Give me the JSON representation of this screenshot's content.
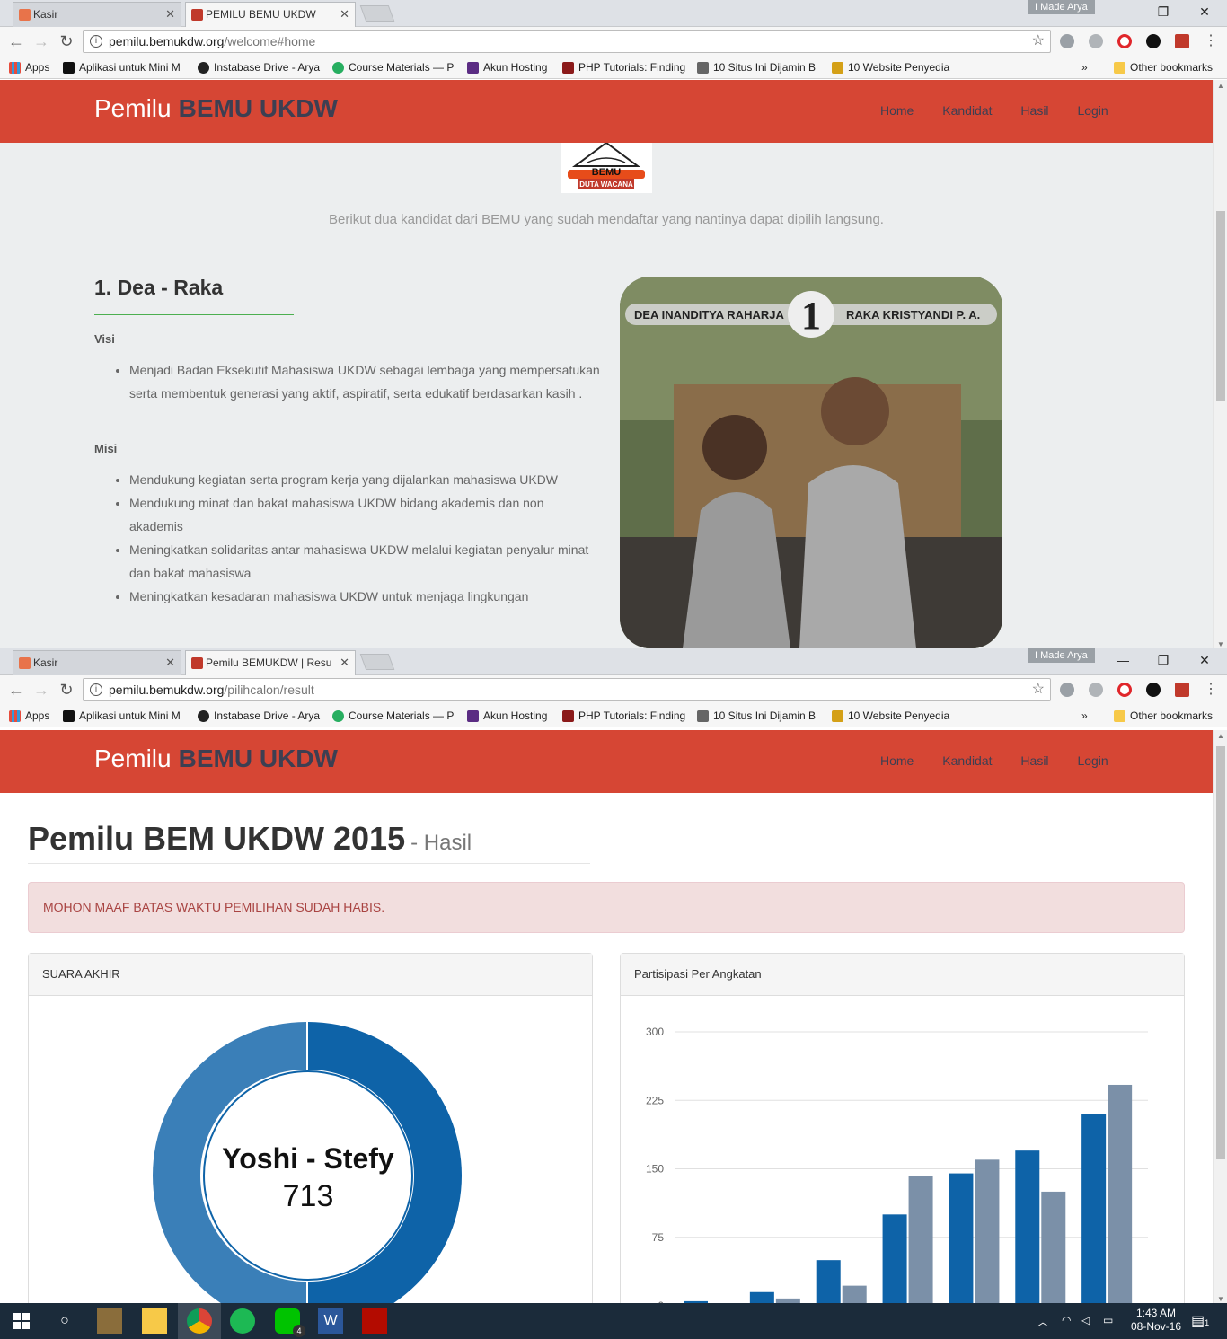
{
  "window_top": {
    "tabs": [
      {
        "title": "Kasir",
        "active": false
      },
      {
        "title": "PEMILU BEMU UKDW",
        "active": true
      }
    ],
    "user": "I Made Arya",
    "url_host": "pemilu.bemukdw.org",
    "url_path": "/welcome#home"
  },
  "window_bottom": {
    "tabs": [
      {
        "title": "Kasir",
        "active": false
      },
      {
        "title": "Pemilu BEMUKDW | Resu",
        "active": true
      }
    ],
    "user": "I Made Arya",
    "url_host": "pemilu.bemukdw.org",
    "url_path": "/pilihcalon/result"
  },
  "bookmarks": {
    "apps": "Apps",
    "items": [
      {
        "label": "Aplikasi untuk Mini M",
        "fade": ""
      },
      {
        "label": "Instabase Drive - Arya",
        "fade": ""
      },
      {
        "label": "Course Materials — P",
        "fade": ""
      },
      {
        "label": "Akun Hosting",
        "fade": ""
      },
      {
        "label": "PHP Tutorials: Finding",
        "fade": ""
      },
      {
        "label": "10 Situs Ini Dijamin B",
        "fade": ""
      },
      {
        "label": "10 Website Penyedia",
        "fade": ""
      }
    ],
    "more": "»",
    "other": "Other bookmarks"
  },
  "navbar": {
    "brand_light": "Pemilu",
    "brand_bold": "BEMU UKDW",
    "links": [
      "Home",
      "Kandidat",
      "Hasil",
      "Login"
    ]
  },
  "welcome": {
    "logo_line1": "BEMU",
    "logo_line2": "DUTA WACANA",
    "intro": "Berikut dua kandidat dari BEMU yang sudah mendaftar yang nantinya dapat dipilih langsung.",
    "candidate_title": "1. Dea - Raka",
    "visi_label": "Visi",
    "visi_items": [
      "Menjadi Badan Eksekutif Mahasiswa UKDW sebagai lembaga yang mempersatukan serta membentuk generasi yang aktif, aspiratif, serta edukatif berdasarkan kasih ."
    ],
    "misi_label": "Misi",
    "misi_items": [
      "Mendukung kegiatan serta program kerja yang dijalankan mahasiswa UKDW",
      "Mendukung minat dan bakat mahasiswa UKDW bidang akademis dan non akademis",
      "Meningkatkan solidaritas antar mahasiswa UKDW melalui kegiatan penyalur minat dan bakat mahasiswa",
      "Meningkatkan kesadaran mahasiswa UKDW untuk menjaga lingkungan"
    ],
    "photo_name_left": "DEA INANDITYA RAHARJA",
    "photo_number": "1",
    "photo_name_right": "RAKA KRISTYANDI P. A."
  },
  "result": {
    "title": "Pemilu BEM UKDW 2015",
    "subtitle": "- Hasil",
    "alert": "MOHON MAAF BATAS WAKTU PEMILIHAN SUDAH HABIS.",
    "panel_left_title": "SUARA AKHIR",
    "panel_right_title": "Partisipasi Per Angkatan"
  },
  "chart_data": [
    {
      "type": "pie",
      "center_label": "Yoshi - Stefy",
      "center_value": "713",
      "colors": [
        "#0e63a8",
        "#3a7fb8"
      ]
    },
    {
      "type": "bar",
      "yticks": [
        "300",
        "225",
        "150",
        "75",
        "0"
      ],
      "ylim": [
        0,
        300
      ],
      "series": [
        {
          "values": [
            5,
            15,
            50,
            100,
            145,
            170,
            210
          ],
          "color": "#0e63a8"
        },
        {
          "values": [
            2,
            8,
            22,
            142,
            160,
            125,
            242
          ],
          "color": "#7b90a8"
        }
      ]
    }
  ],
  "taskbar": {
    "time": "1:43 AM",
    "date": "08-Nov-16",
    "line_badge": "4",
    "notif_badge": "1"
  }
}
